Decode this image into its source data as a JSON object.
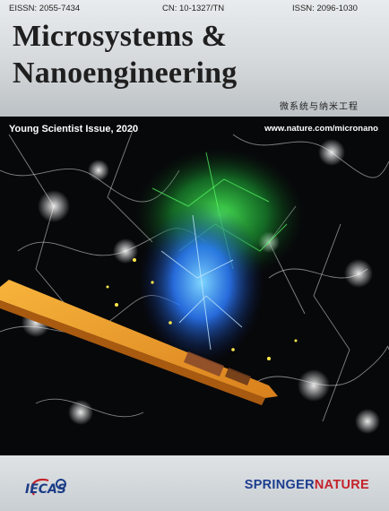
{
  "header": {
    "eissn": "EISSN: 2055-7434",
    "cn": "CN: 10-1327/TN",
    "issn": "ISSN: 2096-1030",
    "title_line1": "Microsystems &",
    "title_line2": "Nanoengineering",
    "chinese_title": "微系统与纳米工程"
  },
  "banner": {
    "issue": "Young Scientist Issue, 2020",
    "url": "www.nature.com/micronano"
  },
  "footer": {
    "iecas_logo_text": "IECAS",
    "springer_part1": "SPRINGER",
    "springer_part2": "NATURE"
  },
  "colors": {
    "springer_blue": "#1c3d8f",
    "nature_red": "#c4222b",
    "probe_orange": "#f0a02a",
    "neuron_green": "#35d14a",
    "neuron_blue": "#2f8cff"
  }
}
